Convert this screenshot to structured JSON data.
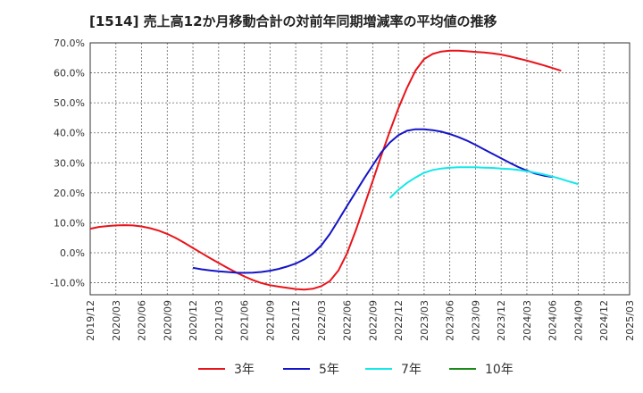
{
  "title": "[1514]  売上高12か月移動合計の対前年同期増減率の平均値の推移",
  "chart_data": {
    "type": "line",
    "ylim": [
      -14,
      70
    ],
    "y_ticks": [
      70,
      60,
      50,
      40,
      30,
      20,
      10,
      0,
      -10
    ],
    "y_tick_labels": [
      "70.0%",
      "60.0%",
      "50.0%",
      "40.0%",
      "30.0%",
      "20.0%",
      "10.0%",
      "0.0%",
      "-10.0%"
    ],
    "x_ticks": [
      "2019/12",
      "2020/03",
      "2020/06",
      "2020/09",
      "2020/12",
      "2021/03",
      "2021/06",
      "2021/09",
      "2021/12",
      "2022/03",
      "2022/06",
      "2022/09",
      "2022/12",
      "2023/03",
      "2023/06",
      "2023/09",
      "2023/12",
      "2024/03",
      "2024/06",
      "2024/09",
      "2024/12",
      "2025/03"
    ],
    "grid": true,
    "legend_position": "bottom",
    "series": [
      {
        "name": "3年",
        "color": "#e8141b",
        "points": [
          [
            "2019/12",
            8.0
          ],
          [
            "2020/01",
            8.6
          ],
          [
            "2020/02",
            8.9
          ],
          [
            "2020/03",
            9.1
          ],
          [
            "2020/04",
            9.2
          ],
          [
            "2020/05",
            9.1
          ],
          [
            "2020/06",
            8.8
          ],
          [
            "2020/07",
            8.2
          ],
          [
            "2020/08",
            7.4
          ],
          [
            "2020/09",
            6.3
          ],
          [
            "2020/10",
            4.9
          ],
          [
            "2020/11",
            3.3
          ],
          [
            "2020/12",
            1.6
          ],
          [
            "2021/01",
            -0.1
          ],
          [
            "2021/02",
            -1.8
          ],
          [
            "2021/03",
            -3.4
          ],
          [
            "2021/04",
            -5.0
          ],
          [
            "2021/05",
            -6.5
          ],
          [
            "2021/06",
            -7.9
          ],
          [
            "2021/07",
            -9.1
          ],
          [
            "2021/08",
            -10.1
          ],
          [
            "2021/09",
            -10.8
          ],
          [
            "2021/10",
            -11.3
          ],
          [
            "2021/11",
            -11.7
          ],
          [
            "2021/12",
            -12.1
          ],
          [
            "2022/01",
            -12.3
          ],
          [
            "2022/02",
            -12.0
          ],
          [
            "2022/03",
            -11.1
          ],
          [
            "2022/04",
            -9.4
          ],
          [
            "2022/05",
            -5.9
          ],
          [
            "2022/06",
            -0.2
          ],
          [
            "2022/07",
            7.3
          ],
          [
            "2022/08",
            15.6
          ],
          [
            "2022/09",
            24.0
          ],
          [
            "2022/10",
            32.5
          ],
          [
            "2022/11",
            40.6
          ],
          [
            "2022/12",
            48.2
          ],
          [
            "2023/01",
            55.0
          ],
          [
            "2023/02",
            60.8
          ],
          [
            "2023/03",
            64.6
          ],
          [
            "2023/04",
            66.3
          ],
          [
            "2023/05",
            67.1
          ],
          [
            "2023/06",
            67.4
          ],
          [
            "2023/07",
            67.4
          ],
          [
            "2023/08",
            67.2
          ],
          [
            "2023/09",
            67.0
          ],
          [
            "2023/10",
            66.8
          ],
          [
            "2023/11",
            66.5
          ],
          [
            "2023/12",
            66.1
          ],
          [
            "2024/01",
            65.5
          ],
          [
            "2024/02",
            64.8
          ],
          [
            "2024/03",
            64.1
          ],
          [
            "2024/04",
            63.3
          ],
          [
            "2024/05",
            62.5
          ],
          [
            "2024/06",
            61.6
          ],
          [
            "2024/07",
            60.7
          ]
        ]
      },
      {
        "name": "5年",
        "color": "#1414c8",
        "points": [
          [
            "2020/12",
            -5.0
          ],
          [
            "2021/01",
            -5.5
          ],
          [
            "2021/02",
            -5.9
          ],
          [
            "2021/03",
            -6.2
          ],
          [
            "2021/04",
            -6.4
          ],
          [
            "2021/05",
            -6.6
          ],
          [
            "2021/06",
            -6.7
          ],
          [
            "2021/07",
            -6.6
          ],
          [
            "2021/08",
            -6.4
          ],
          [
            "2021/09",
            -6.0
          ],
          [
            "2021/10",
            -5.4
          ],
          [
            "2021/11",
            -4.6
          ],
          [
            "2021/12",
            -3.6
          ],
          [
            "2022/01",
            -2.2
          ],
          [
            "2022/02",
            -0.3
          ],
          [
            "2022/03",
            2.5
          ],
          [
            "2022/04",
            6.3
          ],
          [
            "2022/05",
            10.9
          ],
          [
            "2022/06",
            15.6
          ],
          [
            "2022/07",
            20.2
          ],
          [
            "2022/08",
            24.8
          ],
          [
            "2022/09",
            29.2
          ],
          [
            "2022/10",
            33.5
          ],
          [
            "2022/11",
            36.8
          ],
          [
            "2022/12",
            39.2
          ],
          [
            "2023/01",
            40.7
          ],
          [
            "2023/02",
            41.2
          ],
          [
            "2023/03",
            41.2
          ],
          [
            "2023/04",
            40.9
          ],
          [
            "2023/05",
            40.4
          ],
          [
            "2023/06",
            39.6
          ],
          [
            "2023/07",
            38.6
          ],
          [
            "2023/08",
            37.4
          ],
          [
            "2023/09",
            36.0
          ],
          [
            "2023/10",
            34.5
          ],
          [
            "2023/11",
            33.0
          ],
          [
            "2023/12",
            31.5
          ],
          [
            "2024/01",
            30.0
          ],
          [
            "2024/02",
            28.6
          ],
          [
            "2024/03",
            27.4
          ],
          [
            "2024/04",
            26.4
          ],
          [
            "2024/05",
            25.7
          ],
          [
            "2024/06",
            25.3
          ]
        ]
      },
      {
        "name": "7年",
        "color": "#14e8e8",
        "points": [
          [
            "2022/11",
            18.3
          ],
          [
            "2022/12",
            21.0
          ],
          [
            "2023/01",
            23.3
          ],
          [
            "2023/02",
            25.1
          ],
          [
            "2023/03",
            26.7
          ],
          [
            "2023/04",
            27.6
          ],
          [
            "2023/05",
            28.1
          ],
          [
            "2023/06",
            28.4
          ],
          [
            "2023/07",
            28.5
          ],
          [
            "2023/08",
            28.5
          ],
          [
            "2023/09",
            28.5
          ],
          [
            "2023/10",
            28.4
          ],
          [
            "2023/11",
            28.3
          ],
          [
            "2023/12",
            28.1
          ],
          [
            "2024/01",
            27.9
          ],
          [
            "2024/02",
            27.6
          ],
          [
            "2024/03",
            27.2
          ],
          [
            "2024/04",
            26.7
          ],
          [
            "2024/05",
            26.1
          ],
          [
            "2024/06",
            25.4
          ],
          [
            "2024/07",
            24.6
          ],
          [
            "2024/08",
            23.7
          ],
          [
            "2024/09",
            22.9
          ]
        ]
      },
      {
        "name": "10年",
        "color": "#1a8a1a",
        "points": []
      }
    ]
  }
}
